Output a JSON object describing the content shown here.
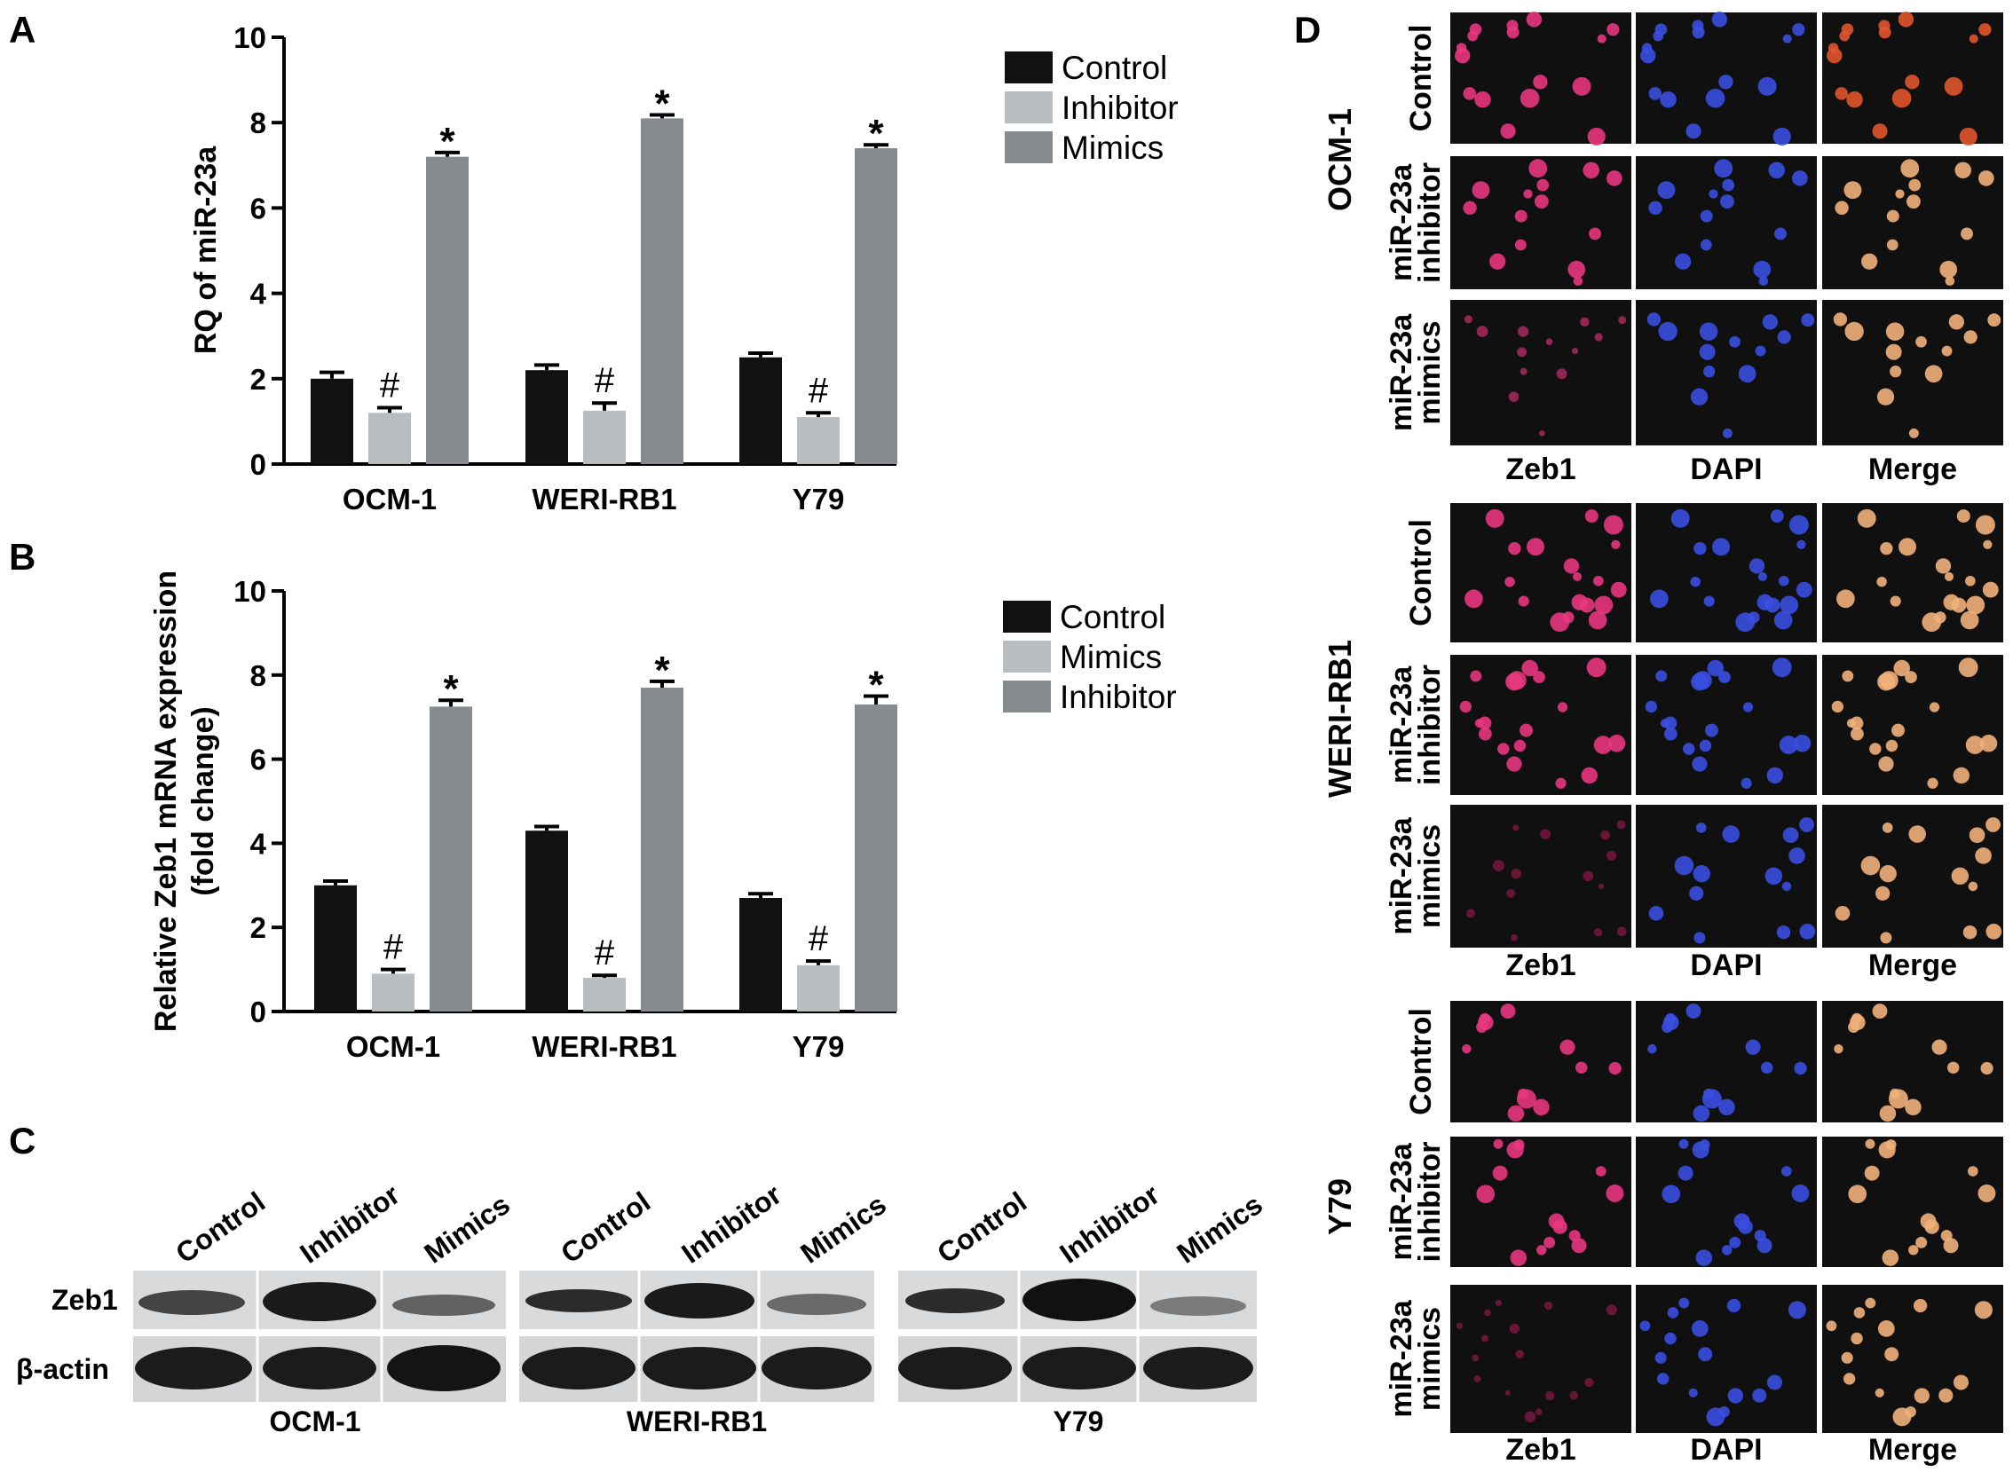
{
  "panels": {
    "A": "A",
    "B": "B",
    "C": "C",
    "D": "D"
  },
  "chart_data": [
    {
      "type": "bar",
      "panel": "A",
      "ylabel": "RQ of miR-23a",
      "xlabel": "",
      "ylim": [
        0,
        10
      ],
      "yticks": [
        0,
        2,
        4,
        6,
        8,
        10
      ],
      "categories": [
        "OCM-1",
        "WERI-RB1",
        "Y79"
      ],
      "legend_position": "top-right",
      "series": [
        {
          "name": "Control",
          "color": "#111111",
          "values": [
            2.0,
            2.2,
            2.5
          ],
          "errors": [
            0.15,
            0.12,
            0.1
          ],
          "marks": [
            "",
            "",
            ""
          ]
        },
        {
          "name": "Inhibitor",
          "color": "#b8bdbf",
          "values": [
            1.2,
            1.25,
            1.1
          ],
          "errors": [
            0.12,
            0.18,
            0.1
          ],
          "marks": [
            "#",
            "#",
            "#"
          ]
        },
        {
          "name": "Mimics",
          "color": "#858b8e",
          "values": [
            7.2,
            8.1,
            7.4
          ],
          "errors": [
            0.1,
            0.08,
            0.08
          ],
          "marks": [
            "*",
            "*",
            "*"
          ]
        }
      ]
    },
    {
      "type": "bar",
      "panel": "B",
      "ylabel": "Relative Zeb1 mRNA expression",
      "ylabel2": "(fold change)",
      "xlabel": "",
      "ylim": [
        0,
        10
      ],
      "yticks": [
        0,
        2,
        4,
        6,
        8,
        10
      ],
      "categories": [
        "OCM-1",
        "WERI-RB1",
        "Y79"
      ],
      "legend_position": "top-right",
      "series": [
        {
          "name": "Control",
          "color": "#111111",
          "values": [
            3.0,
            4.3,
            2.7
          ],
          "errors": [
            0.1,
            0.1,
            0.1
          ],
          "marks": [
            "",
            "",
            ""
          ]
        },
        {
          "name": "Mimics",
          "color": "#b8bdbf",
          "values": [
            0.9,
            0.8,
            1.1
          ],
          "errors": [
            0.1,
            0.06,
            0.1
          ],
          "marks": [
            "#",
            "#",
            "#"
          ]
        },
        {
          "name": "Inhibitor",
          "color": "#858b8e",
          "values": [
            7.25,
            7.7,
            7.3
          ],
          "errors": [
            0.15,
            0.15,
            0.2
          ],
          "marks": [
            "*",
            "*",
            "*"
          ]
        }
      ]
    }
  ],
  "western": {
    "lanes": [
      "Control",
      "Inhibitor",
      "Mimics"
    ],
    "rows": [
      "Zeb1",
      "β-actin"
    ],
    "groups": [
      "OCM-1",
      "WERI-RB1",
      "Y79"
    ]
  },
  "fluorescence": {
    "groups": [
      "OCM-1",
      "WERI-RB1",
      "Y79"
    ],
    "rows": [
      [
        "Control"
      ],
      [
        "miR-23a",
        "inhibitor"
      ],
      [
        "miR-23a",
        "mimics"
      ]
    ],
    "columns": [
      "Zeb1",
      "DAPI",
      "Merge"
    ]
  }
}
